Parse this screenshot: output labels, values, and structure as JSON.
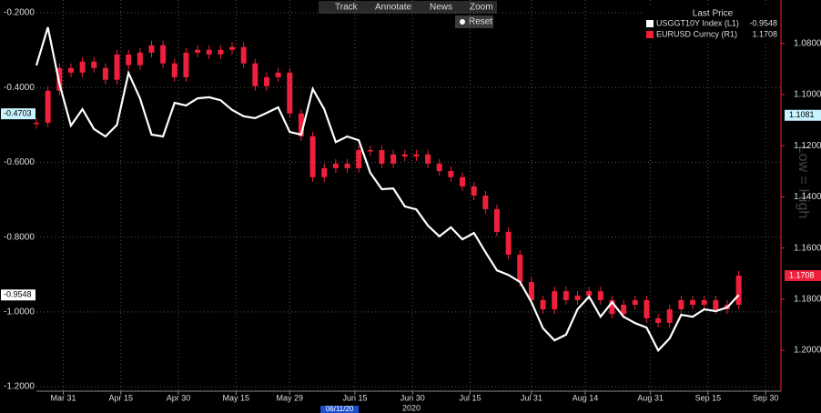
{
  "toolbar": [
    "Track",
    "Annotate",
    "News",
    "Zoom"
  ],
  "reset": "Reset",
  "chart_data": {
    "type": "combo",
    "legend_title": "Last Price",
    "watermark": "Low = High",
    "year_label": "2020",
    "x": [
      "2020-03-24",
      "2020-03-27",
      "2020-03-30",
      "2020-04-02",
      "2020-04-05",
      "2020-04-08",
      "2020-04-11",
      "2020-04-14",
      "2020-04-17",
      "2020-04-20",
      "2020-04-23",
      "2020-04-26",
      "2020-04-29",
      "2020-05-02",
      "2020-05-05",
      "2020-05-08",
      "2020-05-11",
      "2020-05-14",
      "2020-05-17",
      "2020-05-20",
      "2020-05-23",
      "2020-05-26",
      "2020-05-29",
      "2020-06-01",
      "2020-06-04",
      "2020-06-07",
      "2020-06-10",
      "2020-06-13",
      "2020-06-16",
      "2020-06-19",
      "2020-06-22",
      "2020-06-25",
      "2020-06-28",
      "2020-07-01",
      "2020-07-04",
      "2020-07-07",
      "2020-07-10",
      "2020-07-13",
      "2020-07-16",
      "2020-07-19",
      "2020-07-22",
      "2020-07-25",
      "2020-07-28",
      "2020-07-31",
      "2020-08-03",
      "2020-08-06",
      "2020-08-09",
      "2020-08-12",
      "2020-08-15",
      "2020-08-18",
      "2020-08-21",
      "2020-08-24",
      "2020-08-27",
      "2020-08-30",
      "2020-09-02",
      "2020-09-05",
      "2020-09-08",
      "2020-09-11",
      "2020-09-14",
      "2020-09-17",
      "2020-09-20",
      "2020-09-23"
    ],
    "xlim": [
      "2020-03-24",
      "2020-10-04"
    ],
    "xticks": [
      {
        "value": "2020-03-31",
        "label": "Mar 31"
      },
      {
        "value": "2020-04-15",
        "label": "Apr 15"
      },
      {
        "value": "2020-04-30",
        "label": "Apr 30"
      },
      {
        "value": "2020-05-15",
        "label": "May 15"
      },
      {
        "value": "2020-05-29",
        "label": "May 29"
      },
      {
        "value": "2020-06-15",
        "label": "Jun 15"
      },
      {
        "value": "2020-06-30",
        "label": "Jun 30"
      },
      {
        "value": "2020-07-15",
        "label": "Jul 15"
      },
      {
        "value": "2020-07-31",
        "label": "Jul 31"
      },
      {
        "value": "2020-08-14",
        "label": "Aug 14"
      },
      {
        "value": "2020-08-31",
        "label": "Aug 31"
      },
      {
        "value": "2020-09-15",
        "label": "Sep 15"
      },
      {
        "value": "2020-09-30",
        "label": "Sep 30"
      }
    ],
    "ylim": [
      -1.212,
      -0.166
    ],
    "yticks": [
      {
        "value": -0.2,
        "label": "-0.2000"
      },
      {
        "value": -0.4,
        "label": "-0.4000"
      },
      {
        "value": -0.6,
        "label": "-0.6000"
      },
      {
        "value": -0.8,
        "label": "-0.8000"
      },
      {
        "value": -1.0,
        "label": "-1.0000"
      },
      {
        "value": -1.2,
        "label": "-1.2000"
      }
    ],
    "y2lim": [
      1.216,
      1.063
    ],
    "y2ticks": [
      {
        "value": 1.08,
        "label": "1.0800"
      },
      {
        "value": 1.1,
        "label": "1.1000"
      },
      {
        "value": 1.12,
        "label": "1.1200"
      },
      {
        "value": 1.14,
        "label": "1.1400"
      },
      {
        "value": 1.16,
        "label": "1.1600"
      },
      {
        "value": 1.18,
        "label": "1.1800"
      },
      {
        "value": 1.2,
        "label": "1.2000"
      }
    ],
    "grid": true,
    "crosshair": {
      "date": {
        "value": "2020-06-11",
        "label": "06/11/20"
      },
      "y": {
        "value": -0.4703,
        "label": "-0.4703"
      },
      "y2": {
        "value": 1.1081,
        "label": "1.1081"
      }
    },
    "series": [
      {
        "name": "USGGT10Y Index  (L1)",
        "type": "line",
        "color": "#ffffff",
        "last": {
          "value": -0.9548,
          "label": "-0.9548"
        },
        "values": [
          -0.341,
          -0.239,
          -0.39,
          -0.502,
          -0.458,
          -0.511,
          -0.531,
          -0.5,
          -0.361,
          -0.429,
          -0.526,
          -0.531,
          -0.441,
          -0.448,
          -0.429,
          -0.426,
          -0.434,
          -0.46,
          -0.477,
          -0.482,
          -0.468,
          -0.453,
          -0.519,
          -0.526,
          -0.404,
          -0.458,
          -0.546,
          -0.531,
          -0.541,
          -0.628,
          -0.672,
          -0.67,
          -0.718,
          -0.726,
          -0.769,
          -0.798,
          -0.774,
          -0.806,
          -0.789,
          -0.84,
          -0.889,
          -0.901,
          -0.92,
          -0.974,
          -1.044,
          -1.076,
          -1.061,
          -0.993,
          -0.959,
          -1.013,
          -0.974,
          -1.013,
          -1.03,
          -1.042,
          -1.103,
          -1.071,
          -1.008,
          -1.013,
          -0.993,
          -0.998,
          -0.988,
          -0.955
        ]
      },
      {
        "name": "EURUSD Curncy  (R1)",
        "type": "candlestick",
        "axis": "y2",
        "color": "#f0203c",
        "last": {
          "value": 1.1708,
          "label": "1.1708"
        },
        "values": [
          1.111,
          1.0985,
          1.0896,
          1.0914,
          1.0871,
          1.0896,
          1.0942,
          1.0843,
          1.0885,
          1.0836,
          1.0807,
          1.0878,
          1.0932,
          1.0836,
          1.0825,
          1.0843,
          1.0825,
          1.0814,
          1.0878,
          1.0967,
          1.0932,
          1.0914,
          1.1074,
          1.1163,
          1.1323,
          1.1288,
          1.127,
          1.1288,
          1.1217,
          1.1217,
          1.127,
          1.1234,
          1.1242,
          1.1234,
          1.127,
          1.1299,
          1.1323,
          1.1359,
          1.1395,
          1.1448,
          1.1537,
          1.1626,
          1.1733,
          1.1804,
          1.184,
          1.1769,
          1.1804,
          1.1786,
          1.1769,
          1.1804,
          1.1858,
          1.1822,
          1.1804,
          1.1875,
          1.1893,
          1.184,
          1.1804,
          1.1822,
          1.1804,
          1.184,
          1.1822,
          1.1708
        ]
      }
    ]
  }
}
